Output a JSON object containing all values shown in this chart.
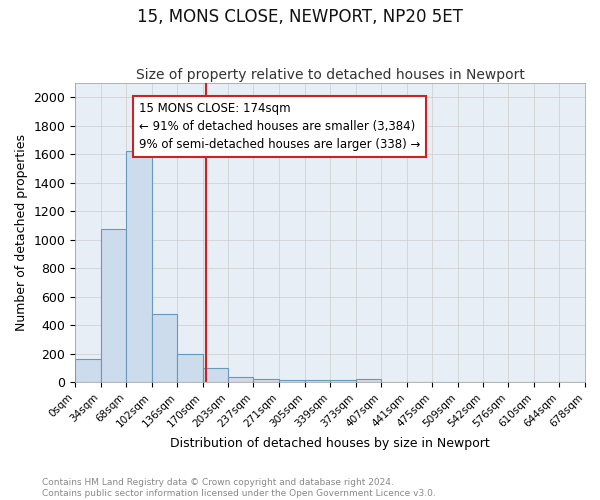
{
  "title": "15, MONS CLOSE, NEWPORT, NP20 5ET",
  "subtitle": "Size of property relative to detached houses in Newport",
  "xlabel": "Distribution of detached houses by size in Newport",
  "ylabel": "Number of detached properties",
  "footnote1": "Contains HM Land Registry data © Crown copyright and database right 2024.",
  "footnote2": "Contains public sector information licensed under the Open Government Licence v3.0.",
  "bin_edges": [
    0,
    34,
    68,
    102,
    136,
    170,
    203,
    237,
    271,
    305,
    339,
    373,
    407,
    441,
    475,
    509,
    542,
    576,
    610,
    644,
    678
  ],
  "bar_heights": [
    165,
    1075,
    1620,
    480,
    200,
    100,
    38,
    25,
    15,
    15,
    15,
    20,
    0,
    0,
    0,
    0,
    0,
    0,
    0,
    0
  ],
  "bar_color": "#ccdcec",
  "bar_edge_color": "#6699bb",
  "red_line_x": 174,
  "annotation_line1": "15 MONS CLOSE: 174sqm",
  "annotation_line2": "← 91% of detached houses are smaller (3,384)",
  "annotation_line3": "9% of semi-detached houses are larger (338) →",
  "annotation_box_color": "#ffffff",
  "annotation_box_edge_color": "#cc2222",
  "ylim": [
    0,
    2100
  ],
  "ylim_display": 2000,
  "yticks": [
    0,
    200,
    400,
    600,
    800,
    1000,
    1200,
    1400,
    1600,
    1800,
    2000
  ],
  "grid_color": "#cccccc",
  "background_color": "#e8eef5",
  "title_fontsize": 12,
  "subtitle_fontsize": 10,
  "annotation_fontsize": 8.5,
  "footnote_fontsize": 6.5,
  "tick_labels": [
    "0sqm",
    "34sqm",
    "68sqm",
    "102sqm",
    "136sqm",
    "170sqm",
    "203sqm",
    "237sqm",
    "271sqm",
    "305sqm",
    "339sqm",
    "373sqm",
    "407sqm",
    "441sqm",
    "475sqm",
    "509sqm",
    "542sqm",
    "576sqm",
    "610sqm",
    "644sqm",
    "678sqm"
  ]
}
